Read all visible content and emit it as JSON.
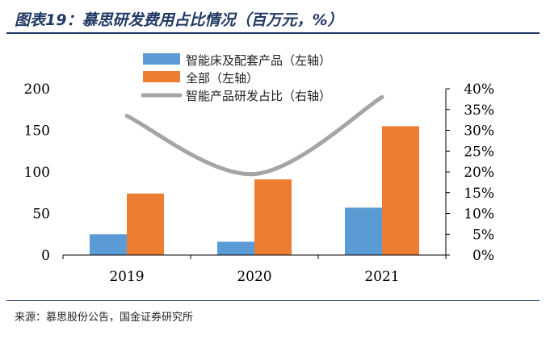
{
  "title": "图表19：慕思研发费用占比情况（百万元，%）",
  "source": "来源：慕思股份公告，国金证券研究所",
  "colors": {
    "bar_primary": "#5b9bd5",
    "bar_total": "#ed7d31",
    "line": "#a5a5a5",
    "title": "#1f3864"
  },
  "chart_data": {
    "type": "bar",
    "categories": [
      "2019",
      "2020",
      "2021"
    ],
    "series": [
      {
        "name": "智能床及配套产品（左轴）",
        "type": "bar",
        "axis": "left",
        "values": [
          25,
          16,
          57
        ]
      },
      {
        "name": "全部（左轴）",
        "type": "bar",
        "axis": "left",
        "values": [
          74,
          91,
          155
        ]
      },
      {
        "name": "智能产品研发占比（右轴）",
        "type": "line",
        "axis": "right",
        "values": [
          33.5,
          19.5,
          38
        ]
      }
    ],
    "left_axis": {
      "ylim": [
        0,
        200
      ],
      "ticks": [
        "0",
        "50",
        "100",
        "150",
        "200"
      ]
    },
    "right_axis": {
      "ylim": [
        0,
        40
      ],
      "ticks": [
        "0%",
        "5%",
        "10%",
        "15%",
        "20%",
        "25%",
        "30%",
        "35%",
        "40%"
      ]
    },
    "legend_position": "top-center",
    "grid": false
  }
}
